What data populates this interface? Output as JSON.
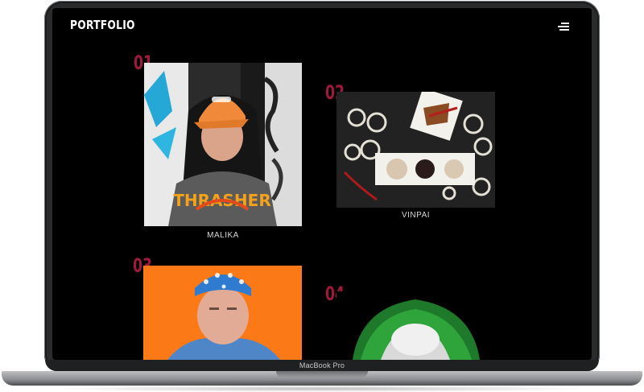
{
  "site": {
    "brand": "PORTFOLIO",
    "menu_icon": "hamburger-menu-icon"
  },
  "projects": [
    {
      "number": "01",
      "title": "MALIKA"
    },
    {
      "number": "02",
      "title": "VINPAI"
    },
    {
      "number": "03",
      "title": ""
    },
    {
      "number": "04",
      "title": ""
    }
  ],
  "device": {
    "model": "MacBook Pro"
  },
  "colors": {
    "background": "#000000",
    "accent_number": "#9e1a3a",
    "text": "#ffffff"
  }
}
